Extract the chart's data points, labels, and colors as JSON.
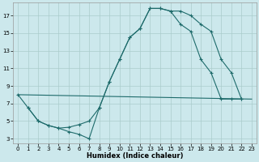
{
  "background_color": "#cce8ec",
  "grid_color": "#aacccc",
  "line_color": "#1e6b6b",
  "xlabel": "Humidex (Indice chaleur)",
  "xlim": [
    -0.5,
    23.5
  ],
  "ylim": [
    2.5,
    18.5
  ],
  "xticks": [
    0,
    1,
    2,
    3,
    4,
    5,
    6,
    7,
    8,
    9,
    10,
    11,
    12,
    13,
    14,
    15,
    16,
    17,
    18,
    19,
    20,
    21,
    22,
    23
  ],
  "yticks": [
    3,
    5,
    7,
    9,
    11,
    13,
    15,
    17
  ],
  "curve1_x": [
    0,
    1,
    2,
    3,
    4,
    5,
    6,
    7,
    8,
    9,
    10,
    11,
    12,
    13,
    14,
    15,
    16,
    17,
    18,
    19,
    20,
    21,
    22
  ],
  "curve1_y": [
    8.0,
    6.5,
    5.0,
    4.5,
    4.2,
    3.8,
    3.5,
    3.0,
    6.5,
    9.5,
    12.0,
    14.5,
    15.5,
    17.8,
    17.8,
    17.5,
    17.5,
    17.0,
    16.0,
    15.2,
    12.0,
    10.5,
    7.5
  ],
  "curve2_x": [
    0,
    23
  ],
  "curve2_y": [
    8.0,
    7.5
  ],
  "curve3_x": [
    1,
    2,
    3,
    4,
    5,
    6,
    7,
    8,
    9,
    10,
    11,
    12,
    13,
    14,
    15,
    16,
    17,
    18,
    19,
    20,
    21,
    22
  ],
  "curve3_y": [
    6.5,
    5.0,
    4.5,
    4.2,
    4.3,
    4.6,
    5.0,
    6.5,
    9.5,
    12.0,
    14.5,
    15.5,
    17.8,
    17.8,
    17.5,
    16.0,
    15.2,
    12.0,
    10.5,
    7.5,
    7.5,
    7.5
  ]
}
